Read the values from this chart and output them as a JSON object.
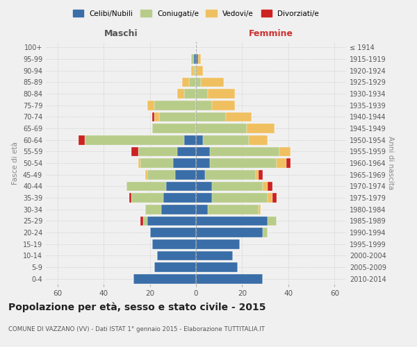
{
  "age_groups": [
    "0-4",
    "5-9",
    "10-14",
    "15-19",
    "20-24",
    "25-29",
    "30-34",
    "35-39",
    "40-44",
    "45-49",
    "50-54",
    "55-59",
    "60-64",
    "65-69",
    "70-74",
    "75-79",
    "80-84",
    "85-89",
    "90-94",
    "95-99",
    "100+"
  ],
  "birth_years": [
    "2010-2014",
    "2005-2009",
    "2000-2004",
    "1995-1999",
    "1990-1994",
    "1985-1989",
    "1980-1984",
    "1975-1979",
    "1970-1974",
    "1965-1969",
    "1960-1964",
    "1955-1959",
    "1950-1954",
    "1945-1949",
    "1940-1944",
    "1935-1939",
    "1930-1934",
    "1925-1929",
    "1920-1924",
    "1915-1919",
    "≤ 1914"
  ],
  "male": {
    "celibi": [
      27,
      18,
      17,
      19,
      20,
      21,
      15,
      14,
      13,
      9,
      10,
      8,
      5,
      0,
      0,
      0,
      0,
      0,
      0,
      1,
      0
    ],
    "coniugati": [
      0,
      0,
      0,
      0,
      0,
      2,
      7,
      14,
      17,
      12,
      14,
      17,
      43,
      19,
      16,
      18,
      5,
      3,
      1,
      1,
      0
    ],
    "vedovi": [
      0,
      0,
      0,
      0,
      0,
      0,
      0,
      0,
      0,
      1,
      1,
      0,
      0,
      0,
      2,
      3,
      3,
      3,
      1,
      0,
      0
    ],
    "divorziati": [
      0,
      0,
      0,
      0,
      0,
      1,
      0,
      1,
      0,
      0,
      0,
      3,
      3,
      0,
      1,
      0,
      0,
      0,
      0,
      0,
      0
    ]
  },
  "female": {
    "nubili": [
      29,
      18,
      16,
      19,
      29,
      31,
      5,
      7,
      7,
      4,
      6,
      6,
      3,
      0,
      0,
      0,
      0,
      0,
      0,
      1,
      0
    ],
    "coniugate": [
      0,
      0,
      0,
      0,
      2,
      4,
      22,
      24,
      22,
      22,
      29,
      30,
      20,
      22,
      13,
      7,
      5,
      2,
      0,
      0,
      0
    ],
    "vedove": [
      0,
      0,
      0,
      0,
      0,
      0,
      1,
      2,
      2,
      1,
      4,
      5,
      8,
      12,
      11,
      10,
      12,
      10,
      3,
      1,
      0
    ],
    "divorziate": [
      0,
      0,
      0,
      0,
      0,
      0,
      0,
      2,
      2,
      2,
      2,
      0,
      0,
      0,
      0,
      0,
      0,
      0,
      0,
      0,
      0
    ]
  },
  "color_celibi": "#3a6ea8",
  "color_coniugati": "#b8cc8a",
  "color_vedovi": "#f0c060",
  "color_divorziati": "#cc2222",
  "xlim": 65,
  "title": "Popolazione per età, sesso e stato civile - 2015",
  "subtitle": "COMUNE DI VAZZANO (VV) - Dati ISTAT 1° gennaio 2015 - Elaborazione TUTTITALIA.IT",
  "ylabel_left": "Fasce di età",
  "ylabel_right": "Anni di nascita",
  "xlabel_left": "Maschi",
  "xlabel_right": "Femmine",
  "background_color": "#f0f0f0",
  "grid_color": "#cccccc"
}
